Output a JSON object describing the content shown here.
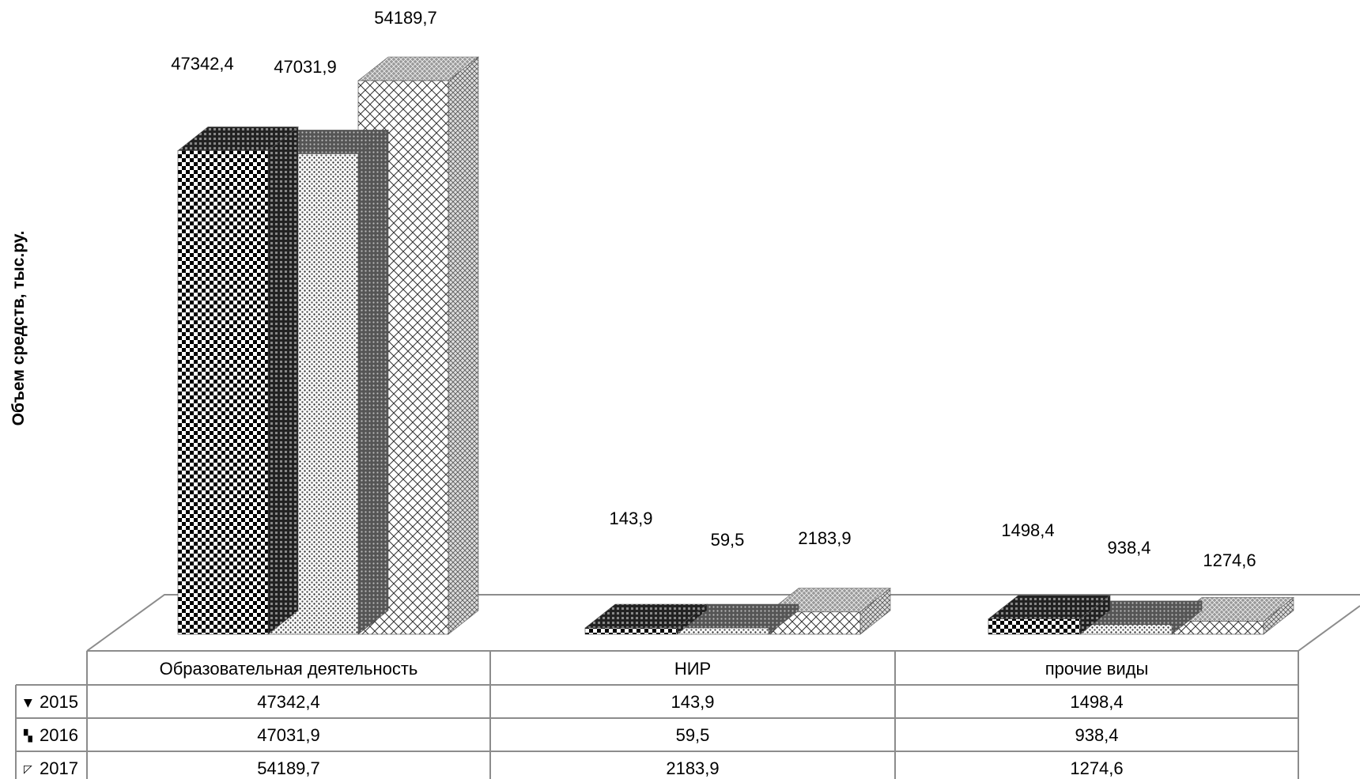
{
  "chart_data": {
    "type": "bar",
    "style": "3d-clustered-with-data-table",
    "ylabel": "Объем средств, тыс.ру.",
    "xlabel": "",
    "categories": [
      "Образовательная деятельность",
      "НИР",
      "прочие виды"
    ],
    "series": [
      {
        "name": "2015",
        "values": [
          47342.4,
          143.9,
          1498.4
        ],
        "labels": [
          "47342,4",
          "143,9",
          "1498,4"
        ],
        "pattern": "checker"
      },
      {
        "name": "2016",
        "values": [
          47031.9,
          59.5,
          938.4
        ],
        "labels": [
          "47031,9",
          "59,5",
          "938,4"
        ],
        "pattern": "dots"
      },
      {
        "name": "2017",
        "values": [
          54189.7,
          2183.9,
          1274.6
        ],
        "labels": [
          "54189,7",
          "2183,9",
          "1274,6"
        ],
        "pattern": "diagonal-grid"
      }
    ],
    "grid": false,
    "legend": "data-table-left",
    "colors": {
      "bar_dark": "#000000",
      "bar_light": "#ffffff",
      "frame": "#8c8c8c",
      "table_line": "#8c8c8c"
    }
  }
}
